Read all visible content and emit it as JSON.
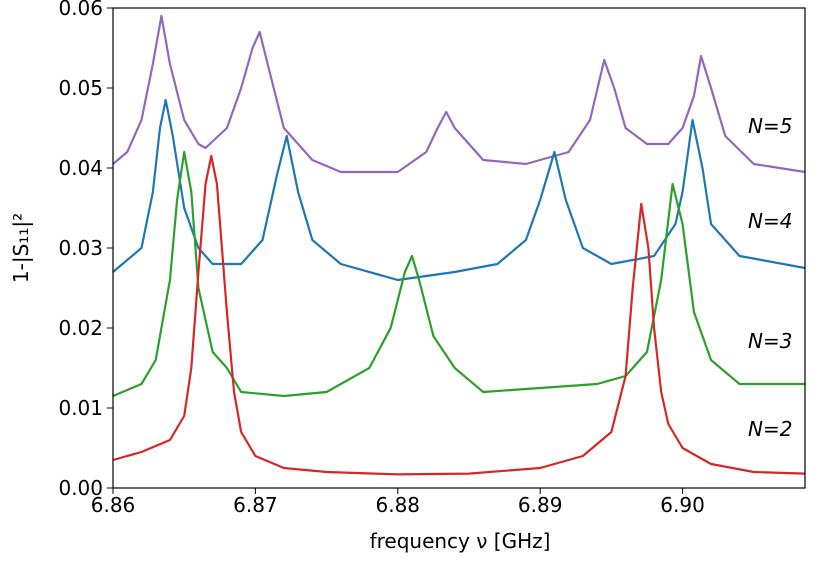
{
  "chart_data": {
    "type": "line",
    "xlabel": "frequency ν [GHz]",
    "ylabel": "1-|S₁₁|²",
    "xlim": [
      6.86,
      6.9086
    ],
    "ylim": [
      0,
      0.06
    ],
    "xticks": [
      6.86,
      6.87,
      6.88,
      6.89,
      {
        "value": 6.9,
        "label": "6.90"
      }
    ],
    "yticks": [
      {
        "value": 0,
        "label": "0.00"
      },
      0.01,
      0.02,
      0.03,
      0.04,
      0.05,
      0.06
    ],
    "series": [
      {
        "name": "N=5",
        "color": "#9467bd",
        "x": [
          6.86,
          6.861,
          6.862,
          6.8628,
          6.8634,
          6.864,
          6.865,
          6.866,
          6.8665,
          6.868,
          6.869,
          6.8698,
          6.8703,
          6.871,
          6.872,
          6.874,
          6.876,
          6.88,
          6.882,
          6.8828,
          6.8834,
          6.884,
          6.886,
          6.889,
          6.892,
          6.8935,
          6.8945,
          6.8952,
          6.896,
          6.8975,
          6.899,
          6.9,
          6.9008,
          6.9013,
          6.902,
          6.903,
          6.905,
          6.9086
        ],
        "values": [
          0.0405,
          0.042,
          0.046,
          0.053,
          0.059,
          0.053,
          0.046,
          0.043,
          0.0425,
          0.045,
          0.05,
          0.055,
          0.057,
          0.052,
          0.045,
          0.041,
          0.0395,
          0.0395,
          0.042,
          0.045,
          0.047,
          0.045,
          0.041,
          0.0405,
          0.042,
          0.046,
          0.0535,
          0.05,
          0.045,
          0.043,
          0.043,
          0.045,
          0.049,
          0.054,
          0.05,
          0.044,
          0.0405,
          0.0395
        ]
      },
      {
        "name": "N=4",
        "color": "#1f77b4",
        "x": [
          6.86,
          6.862,
          6.8628,
          6.8633,
          6.8637,
          6.8642,
          6.865,
          6.866,
          6.867,
          6.869,
          6.8705,
          6.8715,
          6.8722,
          6.873,
          6.874,
          6.876,
          6.88,
          6.884,
          6.887,
          6.889,
          6.89,
          6.891,
          6.8918,
          6.893,
          6.895,
          6.898,
          6.8995,
          6.9,
          6.9007,
          6.9014,
          6.902,
          6.904,
          6.9086
        ],
        "values": [
          0.027,
          0.03,
          0.037,
          0.045,
          0.0485,
          0.044,
          0.035,
          0.03,
          0.028,
          0.028,
          0.031,
          0.039,
          0.044,
          0.037,
          0.031,
          0.028,
          0.026,
          0.027,
          0.028,
          0.031,
          0.036,
          0.042,
          0.036,
          0.03,
          0.028,
          0.029,
          0.033,
          0.037,
          0.046,
          0.04,
          0.033,
          0.029,
          0.0275
        ]
      },
      {
        "name": "N=3",
        "color": "#2ca02c",
        "x": [
          6.86,
          6.862,
          6.863,
          6.864,
          6.8645,
          6.865,
          6.8655,
          6.866,
          6.867,
          6.868,
          6.869,
          6.872,
          6.875,
          6.878,
          6.8795,
          6.8805,
          6.881,
          6.8815,
          6.8825,
          6.884,
          6.886,
          6.89,
          6.894,
          6.896,
          6.8975,
          6.8985,
          6.8993,
          6.9,
          6.9008,
          6.902,
          6.904,
          6.9086
        ],
        "values": [
          0.0115,
          0.013,
          0.016,
          0.026,
          0.036,
          0.042,
          0.037,
          0.025,
          0.017,
          0.015,
          0.012,
          0.0115,
          0.012,
          0.015,
          0.02,
          0.027,
          0.029,
          0.026,
          0.019,
          0.015,
          0.012,
          0.0125,
          0.013,
          0.014,
          0.017,
          0.026,
          0.038,
          0.033,
          0.022,
          0.016,
          0.013,
          0.013
        ]
      },
      {
        "name": "N=2",
        "color": "#d62728",
        "x": [
          6.86,
          6.862,
          6.864,
          6.865,
          6.8655,
          6.866,
          6.8665,
          6.8669,
          6.8673,
          6.868,
          6.8685,
          6.869,
          6.87,
          6.872,
          6.875,
          6.88,
          6.885,
          6.89,
          6.893,
          6.895,
          6.896,
          6.8965,
          6.8971,
          6.8976,
          6.898,
          6.8985,
          6.899,
          6.9,
          6.902,
          6.905,
          6.9086
        ],
        "values": [
          0.0035,
          0.0045,
          0.006,
          0.009,
          0.015,
          0.027,
          0.038,
          0.0415,
          0.038,
          0.022,
          0.012,
          0.007,
          0.004,
          0.0025,
          0.002,
          0.0017,
          0.0018,
          0.0025,
          0.004,
          0.007,
          0.014,
          0.025,
          0.0355,
          0.03,
          0.02,
          0.012,
          0.008,
          0.005,
          0.003,
          0.002,
          0.0018
        ]
      }
    ]
  }
}
